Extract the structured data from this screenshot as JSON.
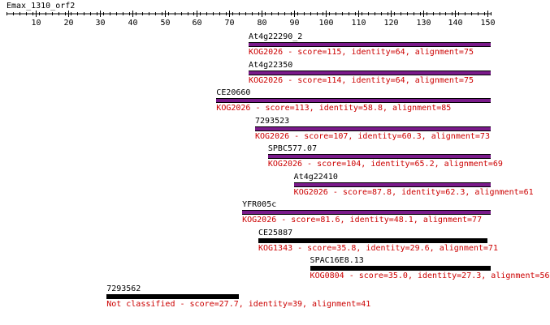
{
  "title": "Emax_1310_orf2",
  "ruler": {
    "min": 1,
    "max": 151,
    "ticks": [
      10,
      20,
      30,
      40,
      50,
      60,
      70,
      80,
      90,
      100,
      110,
      120,
      130,
      140,
      150
    ]
  },
  "colors": {
    "kog_bar": "#7a1a8a",
    "unclassified_bar": "#000000",
    "info_text": "#cc0000",
    "name_text": "#000000"
  },
  "hits": [
    {
      "name": "At4g22290_2",
      "start": 76,
      "end": 151,
      "bar_color": "#7a1a8a",
      "info": "KOG2026 - score=115, identity=64, alignment=75"
    },
    {
      "name": "At4g22350",
      "start": 76,
      "end": 151,
      "bar_color": "#7a1a8a",
      "info": "KOG2026 - score=114, identity=64, alignment=75"
    },
    {
      "name": "CE20660",
      "start": 66,
      "end": 151,
      "bar_color": "#7a1a8a",
      "info": "KOG2026 - score=113, identity=58.8, alignment=85"
    },
    {
      "name": "7293523",
      "start": 78,
      "end": 151,
      "bar_color": "#7a1a8a",
      "info": "KOG2026 - score=107, identity=60.3, alignment=73"
    },
    {
      "name": "SPBC577.07",
      "start": 82,
      "end": 151,
      "bar_color": "#7a1a8a",
      "info": "KOG2026 - score=104, identity=65.2, alignment=69"
    },
    {
      "name": "At4g22410",
      "start": 90,
      "end": 151,
      "bar_color": "#7a1a8a",
      "info": "KOG2026 - score=87.8, identity=62.3, alignment=61"
    },
    {
      "name": "YFR005c",
      "start": 74,
      "end": 151,
      "bar_color": "#7a1a8a",
      "info": "KOG2026 - score=81.6, identity=48.1, alignment=77"
    },
    {
      "name": "CE25887",
      "start": 79,
      "end": 150,
      "bar_color": "#000000",
      "info": "KOG1343 - score=35.8, identity=29.6, alignment=71"
    },
    {
      "name": "SPAC16E8.13",
      "start": 95,
      "end": 151,
      "bar_color": "#000000",
      "info": "KOG0804 - score=35.0, identity=27.3, alignment=56"
    },
    {
      "name": "7293562",
      "start": 32,
      "end": 73,
      "bar_color": "#000000",
      "info": "Not classified - score=27.7, identity=39, alignment=41"
    }
  ]
}
